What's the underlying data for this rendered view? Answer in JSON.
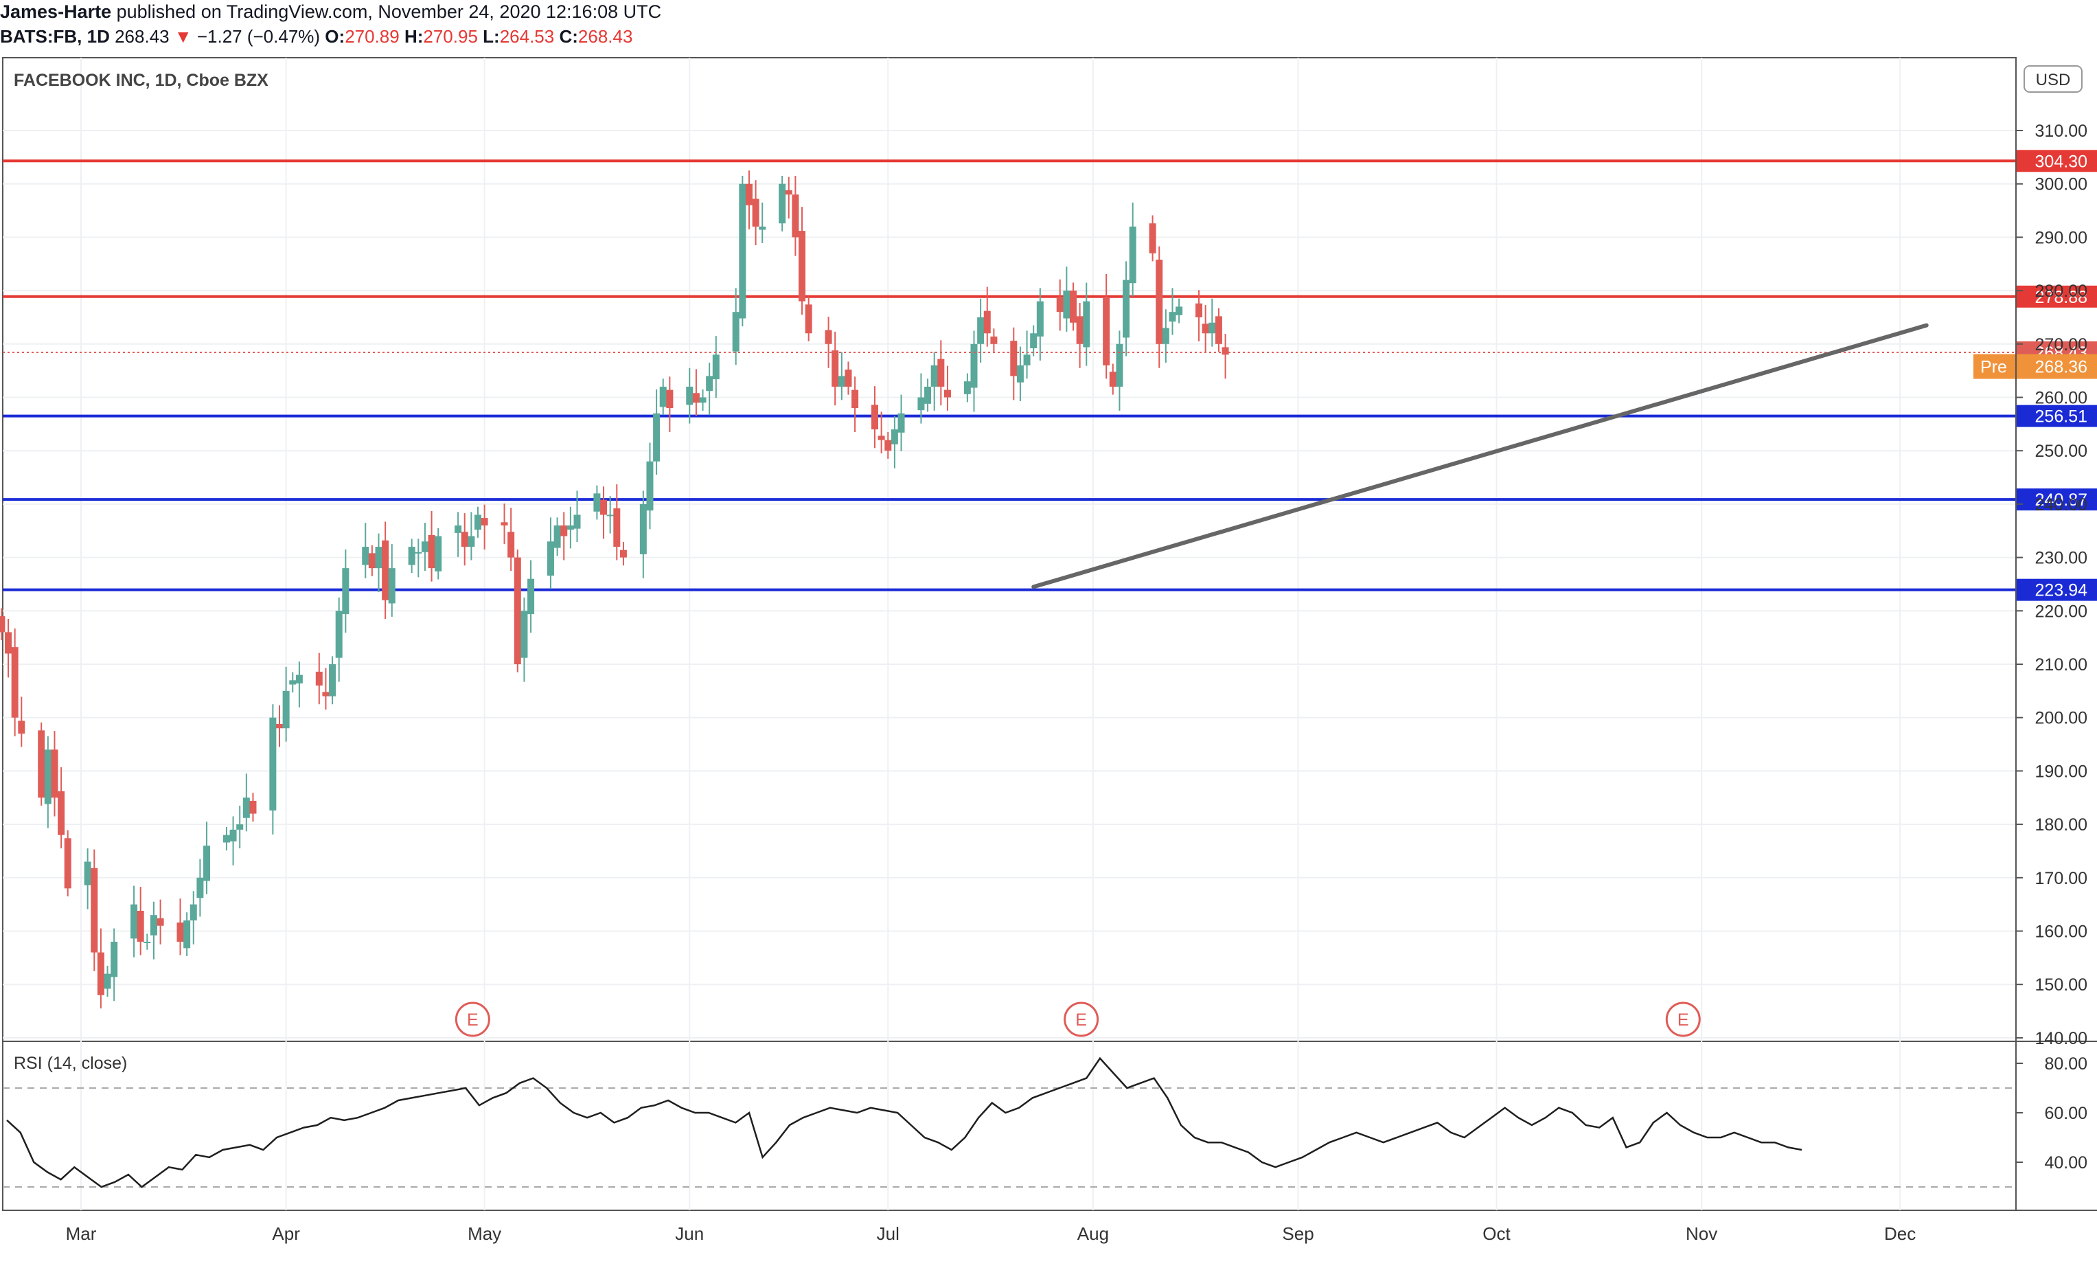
{
  "header": {
    "author": "James-Harte",
    "published_text": "published on TradingView.com, November 24, 2020 12:16:08 UTC",
    "symbol": "BATS:FB, 1D",
    "last": "268.43",
    "change": "−1.27 (−0.47%)",
    "open_label": "O:",
    "open": "270.89",
    "high_label": "H:",
    "high": "270.95",
    "low_label": "L:",
    "low": "264.53",
    "close_label": "C:",
    "close": "268.43"
  },
  "chart_title": "FACEBOOK INC, 1D, Cboe BZX",
  "currency": "USD",
  "rsi_label": "RSI (14, close)",
  "earnings_marker": "E",
  "pre_label": "Pre",
  "colors": {
    "up": "#5aa89a",
    "down": "#e05c57",
    "resistance": "#e53935",
    "support": "#1a2bd6",
    "trendline": "#666666",
    "pre": "#f0923a"
  },
  "chart_data": {
    "type": "candlestick",
    "title": "FACEBOOK INC, 1D, Cboe BZX",
    "x_ticks": [
      "Mar",
      "Apr",
      "May",
      "Jun",
      "Jul",
      "Aug",
      "Sep",
      "Oct",
      "Nov",
      "Dec"
    ],
    "y_ticks": [
      "310.00",
      "300.00",
      "290.00",
      "280.00",
      "270.00",
      "260.00",
      "250.00",
      "240.00",
      "230.00",
      "220.00",
      "210.00",
      "200.00",
      "190.00",
      "180.00",
      "170.00",
      "160.00",
      "150.00",
      "140.00"
    ],
    "ylim": [
      139,
      315
    ],
    "closes": [
      216,
      212,
      200,
      197,
      185,
      194,
      185,
      178,
      168,
      173,
      156,
      148,
      152,
      158,
      165,
      158,
      158,
      163,
      161,
      158,
      162,
      165,
      170,
      176,
      178,
      179,
      180,
      185,
      182,
      200,
      198,
      205,
      207,
      208,
      206,
      204,
      210,
      220,
      228,
      232,
      228,
      232,
      222,
      228,
      232,
      231,
      233,
      228,
      234,
      236,
      232,
      234,
      238,
      236,
      236,
      230,
      210,
      220,
      226,
      233,
      236,
      234,
      236,
      238,
      242,
      238,
      238,
      232,
      230,
      240,
      248,
      257,
      262,
      258,
      262,
      259,
      260,
      264,
      268,
      276,
      300,
      296,
      292,
      292,
      300,
      298,
      290,
      278,
      272,
      270,
      262,
      264,
      262,
      258,
      254,
      252,
      250,
      254,
      257,
      260,
      262,
      266,
      262,
      260,
      263,
      270,
      275,
      272,
      270,
      264,
      266,
      268,
      272,
      278,
      276,
      280,
      274,
      270,
      278,
      266,
      262,
      270,
      282,
      292,
      287,
      270,
      273,
      276,
      277,
      275,
      272,
      274,
      270,
      268
    ],
    "horizontal_levels": [
      {
        "label": "304.30",
        "value": 304.3,
        "kind": "resistance"
      },
      {
        "label": "278.88",
        "value": 278.88,
        "kind": "resistance"
      },
      {
        "label": "256.51",
        "value": 256.51,
        "kind": "support"
      },
      {
        "label": "240.87",
        "value": 240.87,
        "kind": "support"
      },
      {
        "label": "223.94",
        "value": 223.94,
        "kind": "support"
      }
    ],
    "last_price": {
      "label": "268.43",
      "value": 268.43
    },
    "pre_market": {
      "label": "268.36",
      "value": 268.36
    },
    "trendline": [
      {
        "date": "2020-07-23",
        "value": 224.5
      },
      {
        "date": "2020-12-05",
        "value": 273.5
      }
    ],
    "earnings_dates": [
      "2020-04-29",
      "2020-07-30",
      "2020-10-29"
    ],
    "rsi": {
      "name": "RSI (14, close)",
      "y_ticks": [
        "80.00",
        "60.00",
        "40.00"
      ],
      "ylim": [
        25,
        85
      ],
      "bands": [
        30,
        70
      ],
      "values": [
        57,
        52,
        40,
        36,
        33,
        38,
        34,
        30,
        32,
        35,
        30,
        34,
        38,
        37,
        43,
        42,
        45,
        46,
        47,
        45,
        50,
        52,
        54,
        55,
        58,
        57,
        58,
        60,
        62,
        65,
        66,
        67,
        68,
        69,
        70,
        63,
        66,
        68,
        72,
        74,
        70,
        64,
        60,
        58,
        60,
        56,
        58,
        62,
        63,
        65,
        62,
        60,
        60,
        58,
        56,
        60,
        42,
        48,
        55,
        58,
        60,
        62,
        61,
        60,
        62,
        61,
        60,
        55,
        50,
        48,
        45,
        50,
        58,
        64,
        60,
        62,
        66,
        68,
        70,
        72,
        74,
        82,
        76,
        70,
        72,
        74,
        66,
        55,
        50,
        48,
        48,
        46,
        44,
        40,
        38,
        40,
        42,
        45,
        48,
        50,
        52,
        50,
        48,
        50,
        52,
        54,
        56,
        52,
        50,
        54,
        58,
        62,
        58,
        55,
        58,
        62,
        60,
        55,
        54,
        58,
        46,
        48,
        56,
        60,
        55,
        52,
        50,
        50,
        52,
        50,
        48,
        48,
        46,
        45
      ]
    }
  }
}
